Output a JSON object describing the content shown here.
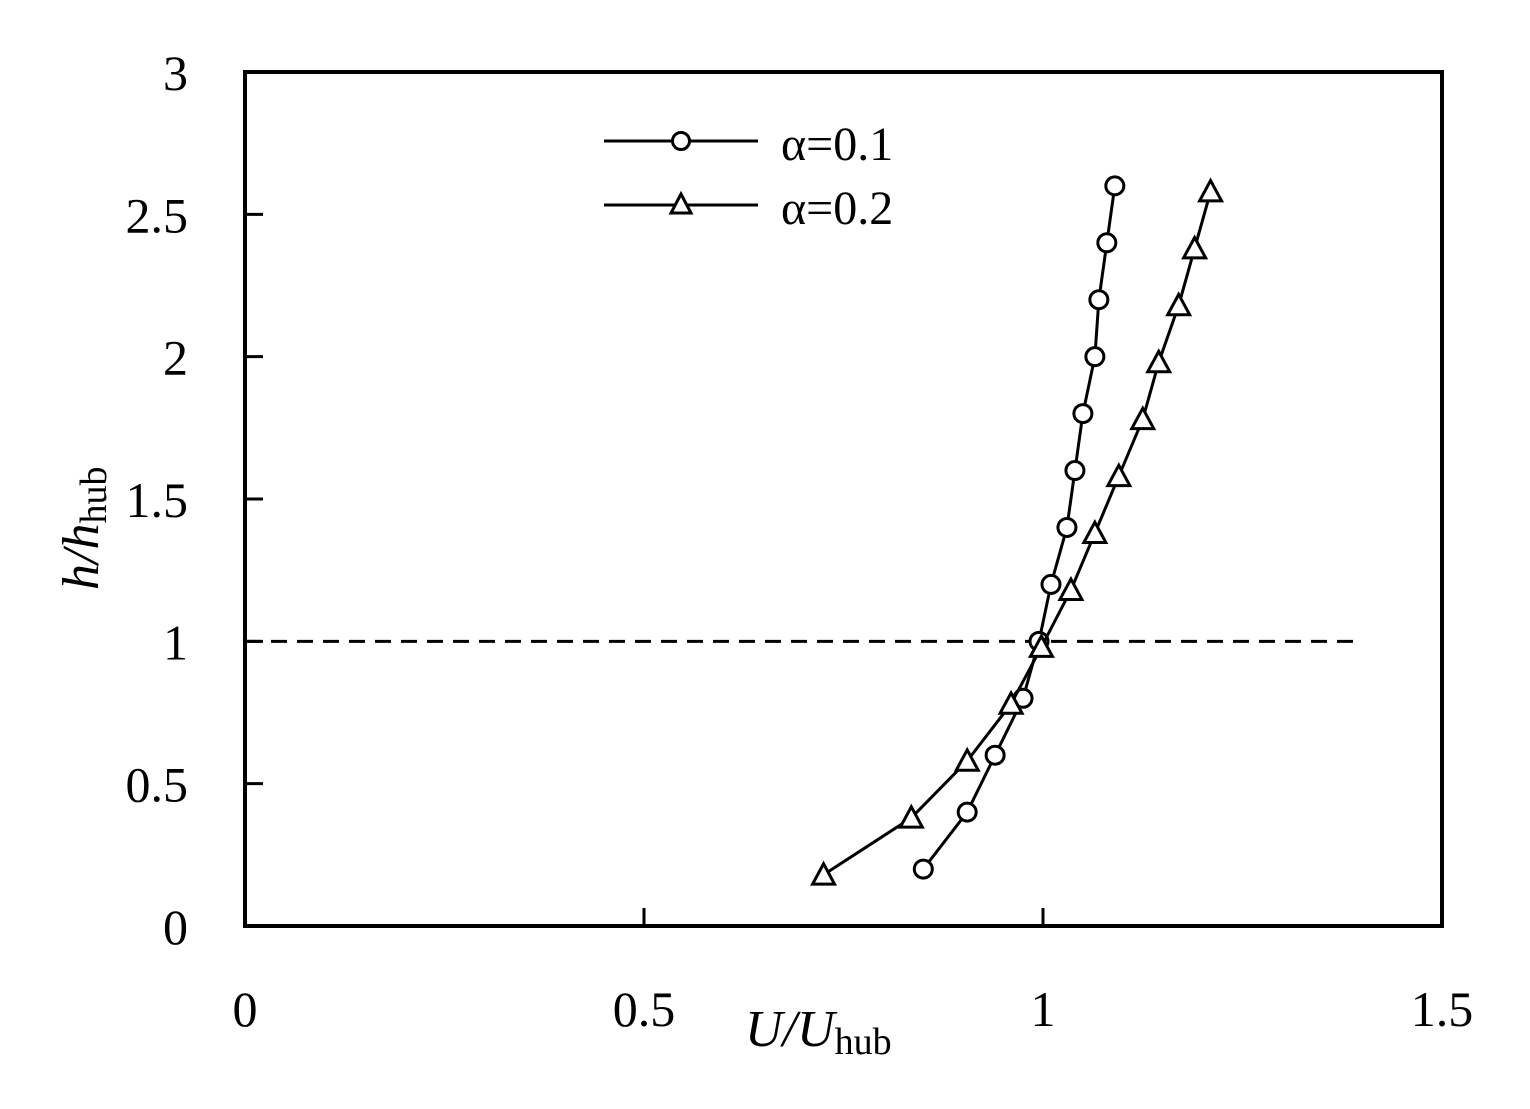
{
  "chart_data": {
    "type": "line",
    "title": "",
    "xlabel": {
      "main": "U/U",
      "sub": "hub"
    },
    "ylabel": {
      "main": "h/h",
      "sub": "hub"
    },
    "xlim": [
      0,
      1.5
    ],
    "ylim": [
      0,
      3
    ],
    "xticks": [
      "0",
      "0.5",
      "1",
      "1.5"
    ],
    "yticks": [
      "0",
      "0.5",
      "1",
      "1.5",
      "2",
      "2.5",
      "3"
    ],
    "grid": false,
    "legend_position": "top-center",
    "series": [
      {
        "name": "α=0.1",
        "marker": "circle",
        "color": "#000000",
        "x": [
          0.85,
          0.905,
          0.94,
          0.975,
          0.995,
          1.01,
          1.03,
          1.04,
          1.05,
          1.065,
          1.07,
          1.08,
          1.09
        ],
        "y": [
          0.2,
          0.4,
          0.6,
          0.8,
          1.0,
          1.2,
          1.4,
          1.6,
          1.8,
          2.0,
          2.2,
          2.4,
          2.6
        ]
      },
      {
        "name": "α=0.2",
        "marker": "triangle",
        "color": "#000000",
        "x": [
          0.725,
          0.835,
          0.905,
          0.96,
          0.998,
          1.035,
          1.065,
          1.095,
          1.125,
          1.145,
          1.17,
          1.19,
          1.21
        ],
        "y": [
          0.18,
          0.38,
          0.58,
          0.78,
          0.98,
          1.18,
          1.38,
          1.58,
          1.78,
          1.98,
          2.18,
          2.38,
          2.58
        ]
      }
    ],
    "reference_line": {
      "y": 1,
      "x_range": [
        0,
        1.4
      ],
      "style": "dashed"
    }
  }
}
